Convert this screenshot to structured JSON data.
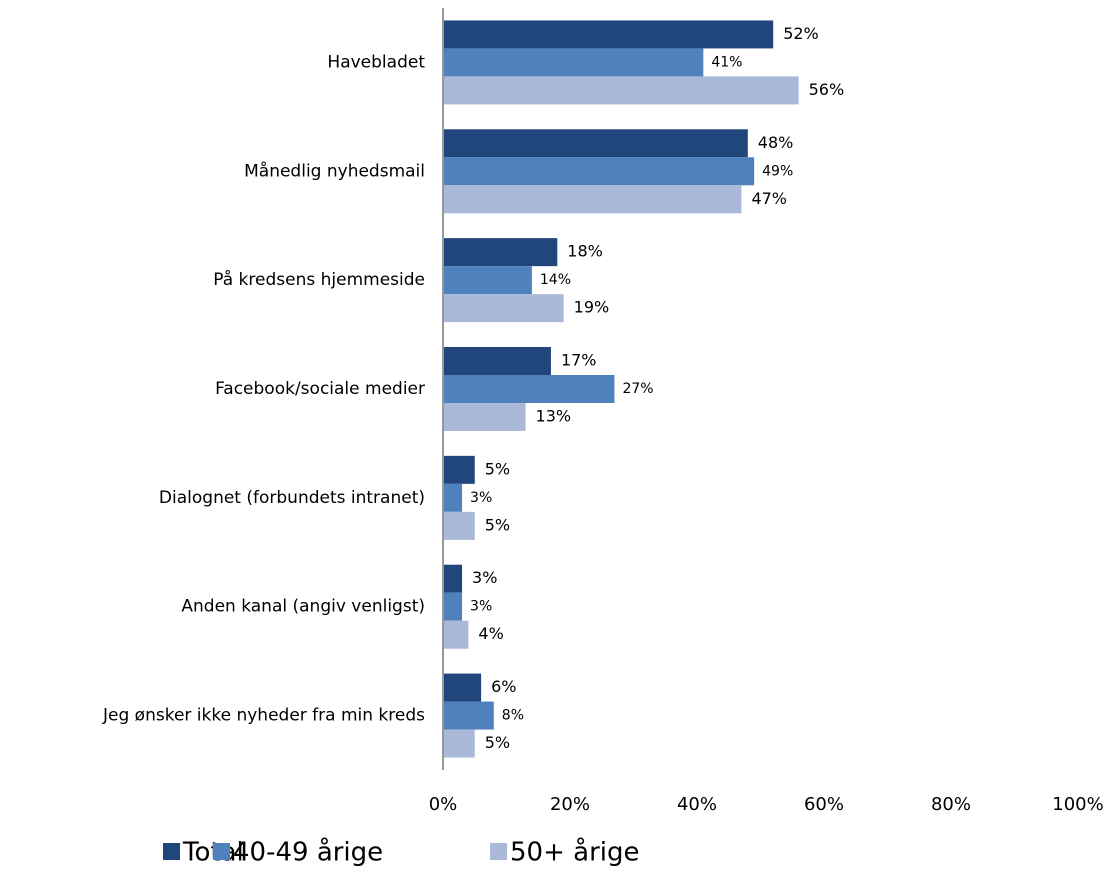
{
  "chart_data": {
    "type": "barh",
    "categories": [
      "Havebladet",
      "Månedlig nyhedsmail",
      "På kredsens hjemmeside",
      "Facebook/sociale medier",
      "Dialognet (forbundets intranet)",
      "Anden kanal (angiv venligst)",
      "Jeg ønsker ikke nyheder fra min kreds"
    ],
    "series": [
      {
        "name": "Total",
        "color": "#21467b",
        "values": [
          52,
          48,
          18,
          17,
          5,
          3,
          6
        ],
        "value_labels": [
          "52%",
          "48%",
          "18%",
          "17%",
          "5%",
          "3%",
          "6%"
        ]
      },
      {
        "name": "40-49 årige",
        "color": "#4f81bd",
        "values": [
          41,
          49,
          14,
          27,
          3,
          3,
          8
        ],
        "value_labels": [
          "41%",
          "49%",
          "14%",
          "27%",
          "3%",
          "3%",
          "8%"
        ]
      },
      {
        "name": "50+ årige",
        "color": "#aab9d8",
        "values": [
          56,
          47,
          19,
          13,
          5,
          4,
          5
        ],
        "value_labels": [
          "56%",
          "47%",
          "19%",
          "13%",
          "5%",
          "4%",
          "5%"
        ]
      }
    ],
    "xlim": [
      0,
      100
    ],
    "xticks": [
      {
        "value": 0,
        "label": "0%"
      },
      {
        "value": 20,
        "label": "20%"
      },
      {
        "value": 40,
        "label": "40%"
      },
      {
        "value": 60,
        "label": "60%"
      },
      {
        "value": 80,
        "label": "80%"
      },
      {
        "value": 100,
        "label": "100%"
      }
    ],
    "legend": "bottom"
  }
}
